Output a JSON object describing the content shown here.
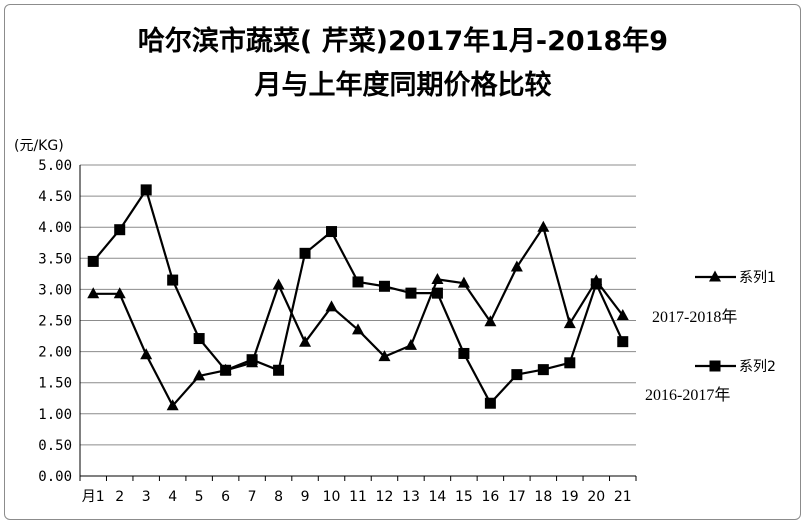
{
  "chart_data": {
    "type": "line",
    "title_line1": "哈尔滨市蔬菜(  芹菜)2017年1月-2018年9",
    "title_line2": "月与上年度同期价格比较",
    "y_unit": "(元/KG)",
    "ylim": [
      0,
      5
    ],
    "y_ticks": [
      "0.00",
      "0.50",
      "1.00",
      "1.50",
      "2.00",
      "2.50",
      "3.00",
      "3.50",
      "4.00",
      "4.50",
      "5.00"
    ],
    "categories": [
      "月1",
      "2",
      "3",
      "4",
      "5",
      "6",
      "7",
      "8",
      "9",
      "10",
      "11",
      "12",
      "13",
      "14",
      "15",
      "16",
      "17",
      "18",
      "19",
      "20",
      "21"
    ],
    "grid": true,
    "legend_position": "right",
    "series": [
      {
        "name": "系列1",
        "marker": "triangle",
        "period_label": "2017-2018年",
        "values": [
          2.93,
          2.93,
          1.95,
          1.13,
          1.61,
          1.7,
          1.82,
          3.07,
          2.15,
          2.72,
          2.35,
          1.92,
          2.1,
          3.16,
          3.1,
          2.48,
          3.36,
          4.0,
          2.45,
          3.14,
          2.58
        ]
      },
      {
        "name": "系列2",
        "marker": "square",
        "period_label": "2016-2017年",
        "values": [
          3.45,
          3.96,
          4.6,
          3.15,
          2.21,
          1.7,
          1.87,
          1.7,
          3.58,
          3.93,
          3.12,
          3.05,
          2.94,
          2.94,
          1.97,
          1.17,
          1.63,
          1.71,
          1.82,
          3.09,
          2.16
        ]
      }
    ],
    "line_color": "#000000",
    "grid_color": "#8c8c8c"
  }
}
